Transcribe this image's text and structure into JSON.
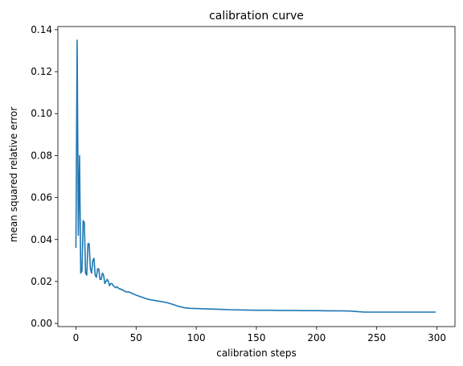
{
  "chart_data": {
    "type": "line",
    "title": "calibration curve",
    "xlabel": "calibration steps",
    "ylabel": "mean squared relative error",
    "xlim": [
      -15,
      315
    ],
    "ylim": [
      -0.0015,
      0.1415
    ],
    "xticks": [
      0,
      50,
      100,
      150,
      200,
      250,
      300
    ],
    "yticks": [
      0.0,
      0.02,
      0.04,
      0.06,
      0.08,
      0.1,
      0.12,
      0.14
    ],
    "xtick_labels": [
      "0",
      "50",
      "100",
      "150",
      "200",
      "250",
      "300"
    ],
    "ytick_labels": [
      "0.00",
      "0.02",
      "0.04",
      "0.06",
      "0.08",
      "0.10",
      "0.12",
      "0.14"
    ],
    "grid": false,
    "colors": {
      "line": "#1f77b4"
    },
    "series": [
      {
        "x": [
          0,
          1,
          2,
          3,
          4,
          5,
          6,
          7,
          8,
          9,
          10,
          11,
          12,
          13,
          14,
          15,
          16,
          17,
          18,
          19,
          20,
          21,
          22,
          23,
          24,
          25,
          26,
          27,
          28,
          29,
          30,
          31,
          32,
          33,
          34,
          35,
          36,
          37,
          38,
          39,
          40,
          42,
          44,
          46,
          48,
          50,
          55,
          60,
          65,
          70,
          75,
          80,
          85,
          90,
          95,
          100,
          110,
          120,
          130,
          140,
          150,
          160,
          170,
          180,
          190,
          200,
          210,
          220,
          228,
          232,
          240,
          250,
          260,
          270,
          280,
          290,
          299
        ],
        "y": [
          0.036,
          0.135,
          0.042,
          0.08,
          0.024,
          0.025,
          0.049,
          0.048,
          0.024,
          0.023,
          0.038,
          0.038,
          0.026,
          0.024,
          0.03,
          0.031,
          0.023,
          0.022,
          0.026,
          0.026,
          0.021,
          0.021,
          0.024,
          0.023,
          0.019,
          0.02,
          0.021,
          0.02,
          0.018,
          0.019,
          0.019,
          0.018,
          0.0175,
          0.017,
          0.0175,
          0.017,
          0.0165,
          0.0165,
          0.016,
          0.016,
          0.0155,
          0.015,
          0.015,
          0.0145,
          0.014,
          0.0135,
          0.0125,
          0.0115,
          0.011,
          0.0105,
          0.01,
          0.0092,
          0.0082,
          0.0075,
          0.0072,
          0.0071,
          0.0069,
          0.0067,
          0.0065,
          0.0064,
          0.0063,
          0.0063,
          0.0062,
          0.0062,
          0.0061,
          0.0061,
          0.006,
          0.006,
          0.0059,
          0.0057,
          0.0054,
          0.0054,
          0.0054,
          0.0054,
          0.0054,
          0.0054,
          0.0054
        ]
      }
    ]
  }
}
